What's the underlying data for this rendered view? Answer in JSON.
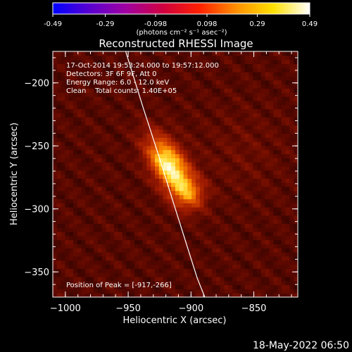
{
  "colorbar": {
    "tick_labels": [
      "-0.49",
      "-0.29",
      "-0.098",
      "0.098",
      "0.29",
      "0.49"
    ],
    "range": [
      -0.49,
      0.49
    ],
    "unit_label": "(photons cm⁻² s⁻¹ asec⁻²)",
    "colormap": [
      "#0000ff",
      "#5a00d0",
      "#a000a0",
      "#d00040",
      "#ff2000",
      "#ff9000",
      "#ffe000",
      "#ffffff"
    ]
  },
  "chart_data": {
    "type": "heatmap",
    "title": "Reconstructed RHESSI Image",
    "xlabel": "Heliocentric X (arcsec)",
    "ylabel": "Heliocentric Y (arcsec)",
    "xlim": [
      -1010,
      -815
    ],
    "ylim": [
      -370,
      -175
    ],
    "x_ticks": [
      -1000,
      -950,
      -900,
      -850
    ],
    "x_tick_labels": [
      "−1000",
      "−950",
      "−900",
      "−850"
    ],
    "y_ticks": [
      -200,
      -250,
      -300,
      -350
    ],
    "y_tick_labels": [
      "−200",
      "−250",
      "−300",
      "−350"
    ],
    "sources": [
      {
        "x": -917,
        "y": -266,
        "value": 0.49
      },
      {
        "x": -902,
        "y": -288,
        "value": 0.3
      }
    ],
    "limb_curve": [
      [
        -952,
        -175
      ],
      [
        -938,
        -220
      ],
      [
        -925,
        -260
      ],
      [
        -914,
        -295
      ],
      [
        -903,
        -330
      ],
      [
        -895,
        -355
      ],
      [
        -889,
        -370
      ]
    ]
  },
  "annotations": {
    "time_range": "17-Oct-2014 19:53:24.000 to 19:57:12.000",
    "detectors": "Detectors: 3F 6F 9F, Att 0",
    "energy": "Energy Range: 6.0 - 12.0 keV",
    "method": "Clean    Total counts: 1.40E+05",
    "peak": "Position of Peak = [-917,-266]"
  },
  "footer": {
    "timestamp": "18-May-2022 06:50"
  }
}
